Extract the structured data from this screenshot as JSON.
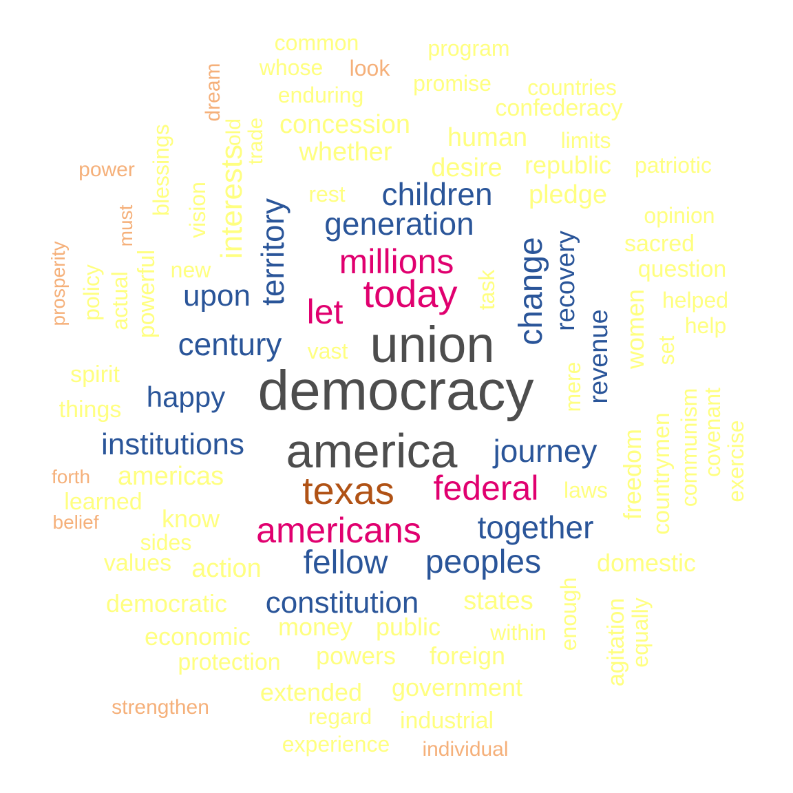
{
  "palette": {
    "gray": "#4d4d4d",
    "brown": "#b05215",
    "magenta": "#e0006f",
    "blue": "#2a5599",
    "orange": "#f5b07a",
    "yellow": "#ffff80"
  },
  "words": [
    {
      "text": "democracy",
      "color": "gray"
    },
    {
      "text": "union",
      "color": "gray"
    },
    {
      "text": "america",
      "color": "gray"
    },
    {
      "text": "texas",
      "color": "brown"
    },
    {
      "text": "today",
      "color": "magenta"
    },
    {
      "text": "millions",
      "color": "magenta"
    },
    {
      "text": "let",
      "color": "magenta"
    },
    {
      "text": "federal",
      "color": "magenta"
    },
    {
      "text": "americans",
      "color": "magenta"
    },
    {
      "text": "children",
      "color": "blue"
    },
    {
      "text": "generation",
      "color": "blue"
    },
    {
      "text": "territory",
      "color": "blue"
    },
    {
      "text": "change",
      "color": "blue"
    },
    {
      "text": "recovery",
      "color": "blue"
    },
    {
      "text": "revenue",
      "color": "blue"
    },
    {
      "text": "upon",
      "color": "blue"
    },
    {
      "text": "century",
      "color": "blue"
    },
    {
      "text": "happy",
      "color": "blue"
    },
    {
      "text": "institutions",
      "color": "blue"
    },
    {
      "text": "journey",
      "color": "blue"
    },
    {
      "text": "together",
      "color": "blue"
    },
    {
      "text": "fellow",
      "color": "blue"
    },
    {
      "text": "peoples",
      "color": "blue"
    },
    {
      "text": "constitution",
      "color": "blue"
    },
    {
      "text": "look",
      "color": "orange"
    },
    {
      "text": "dream",
      "color": "orange"
    },
    {
      "text": "power",
      "color": "orange"
    },
    {
      "text": "must",
      "color": "orange"
    },
    {
      "text": "prosperity",
      "color": "orange"
    },
    {
      "text": "forth",
      "color": "orange"
    },
    {
      "text": "belief",
      "color": "orange"
    },
    {
      "text": "strengthen",
      "color": "orange"
    },
    {
      "text": "individual",
      "color": "orange"
    },
    {
      "text": "common",
      "color": "yellow"
    },
    {
      "text": "program",
      "color": "yellow"
    },
    {
      "text": "whose",
      "color": "yellow"
    },
    {
      "text": "promise",
      "color": "yellow"
    },
    {
      "text": "countries",
      "color": "yellow"
    },
    {
      "text": "enduring",
      "color": "yellow"
    },
    {
      "text": "confederacy",
      "color": "yellow"
    },
    {
      "text": "concession",
      "color": "yellow"
    },
    {
      "text": "old",
      "color": "yellow"
    },
    {
      "text": "trade",
      "color": "yellow"
    },
    {
      "text": "human",
      "color": "yellow"
    },
    {
      "text": "limits",
      "color": "yellow"
    },
    {
      "text": "whether",
      "color": "yellow"
    },
    {
      "text": "desire",
      "color": "yellow"
    },
    {
      "text": "republic",
      "color": "yellow"
    },
    {
      "text": "patriotic",
      "color": "yellow"
    },
    {
      "text": "blessings",
      "color": "yellow"
    },
    {
      "text": "interests",
      "color": "yellow"
    },
    {
      "text": "vision",
      "color": "yellow"
    },
    {
      "text": "rest",
      "color": "yellow"
    },
    {
      "text": "pledge",
      "color": "yellow"
    },
    {
      "text": "opinion",
      "color": "yellow"
    },
    {
      "text": "sacred",
      "color": "yellow"
    },
    {
      "text": "powerful",
      "color": "yellow"
    },
    {
      "text": "actual",
      "color": "yellow"
    },
    {
      "text": "policy",
      "color": "yellow"
    },
    {
      "text": "new",
      "color": "yellow"
    },
    {
      "text": "question",
      "color": "yellow"
    },
    {
      "text": "task",
      "color": "yellow"
    },
    {
      "text": "helped",
      "color": "yellow"
    },
    {
      "text": "help",
      "color": "yellow"
    },
    {
      "text": "vast",
      "color": "yellow"
    },
    {
      "text": "spirit",
      "color": "yellow"
    },
    {
      "text": "mere",
      "color": "yellow"
    },
    {
      "text": "freedom",
      "color": "yellow"
    },
    {
      "text": "women",
      "color": "yellow"
    },
    {
      "text": "set",
      "color": "yellow"
    },
    {
      "text": "countrymen",
      "color": "yellow"
    },
    {
      "text": "communism",
      "color": "yellow"
    },
    {
      "text": "covenant",
      "color": "yellow"
    },
    {
      "text": "exercise",
      "color": "yellow"
    },
    {
      "text": "things",
      "color": "yellow"
    },
    {
      "text": "americas",
      "color": "yellow"
    },
    {
      "text": "laws",
      "color": "yellow"
    },
    {
      "text": "learned",
      "color": "yellow"
    },
    {
      "text": "know",
      "color": "yellow"
    },
    {
      "text": "sides",
      "color": "yellow"
    },
    {
      "text": "values",
      "color": "yellow"
    },
    {
      "text": "action",
      "color": "yellow"
    },
    {
      "text": "domestic",
      "color": "yellow"
    },
    {
      "text": "enough",
      "color": "yellow"
    },
    {
      "text": "democratic",
      "color": "yellow"
    },
    {
      "text": "states",
      "color": "yellow"
    },
    {
      "text": "agitation",
      "color": "yellow"
    },
    {
      "text": "equally",
      "color": "yellow"
    },
    {
      "text": "economic",
      "color": "yellow"
    },
    {
      "text": "money",
      "color": "yellow"
    },
    {
      "text": "public",
      "color": "yellow"
    },
    {
      "text": "within",
      "color": "yellow"
    },
    {
      "text": "protection",
      "color": "yellow"
    },
    {
      "text": "powers",
      "color": "yellow"
    },
    {
      "text": "foreign",
      "color": "yellow"
    },
    {
      "text": "extended",
      "color": "yellow"
    },
    {
      "text": "government",
      "color": "yellow"
    },
    {
      "text": "regard",
      "color": "yellow"
    },
    {
      "text": "industrial",
      "color": "yellow"
    },
    {
      "text": "experience",
      "color": "yellow"
    }
  ]
}
